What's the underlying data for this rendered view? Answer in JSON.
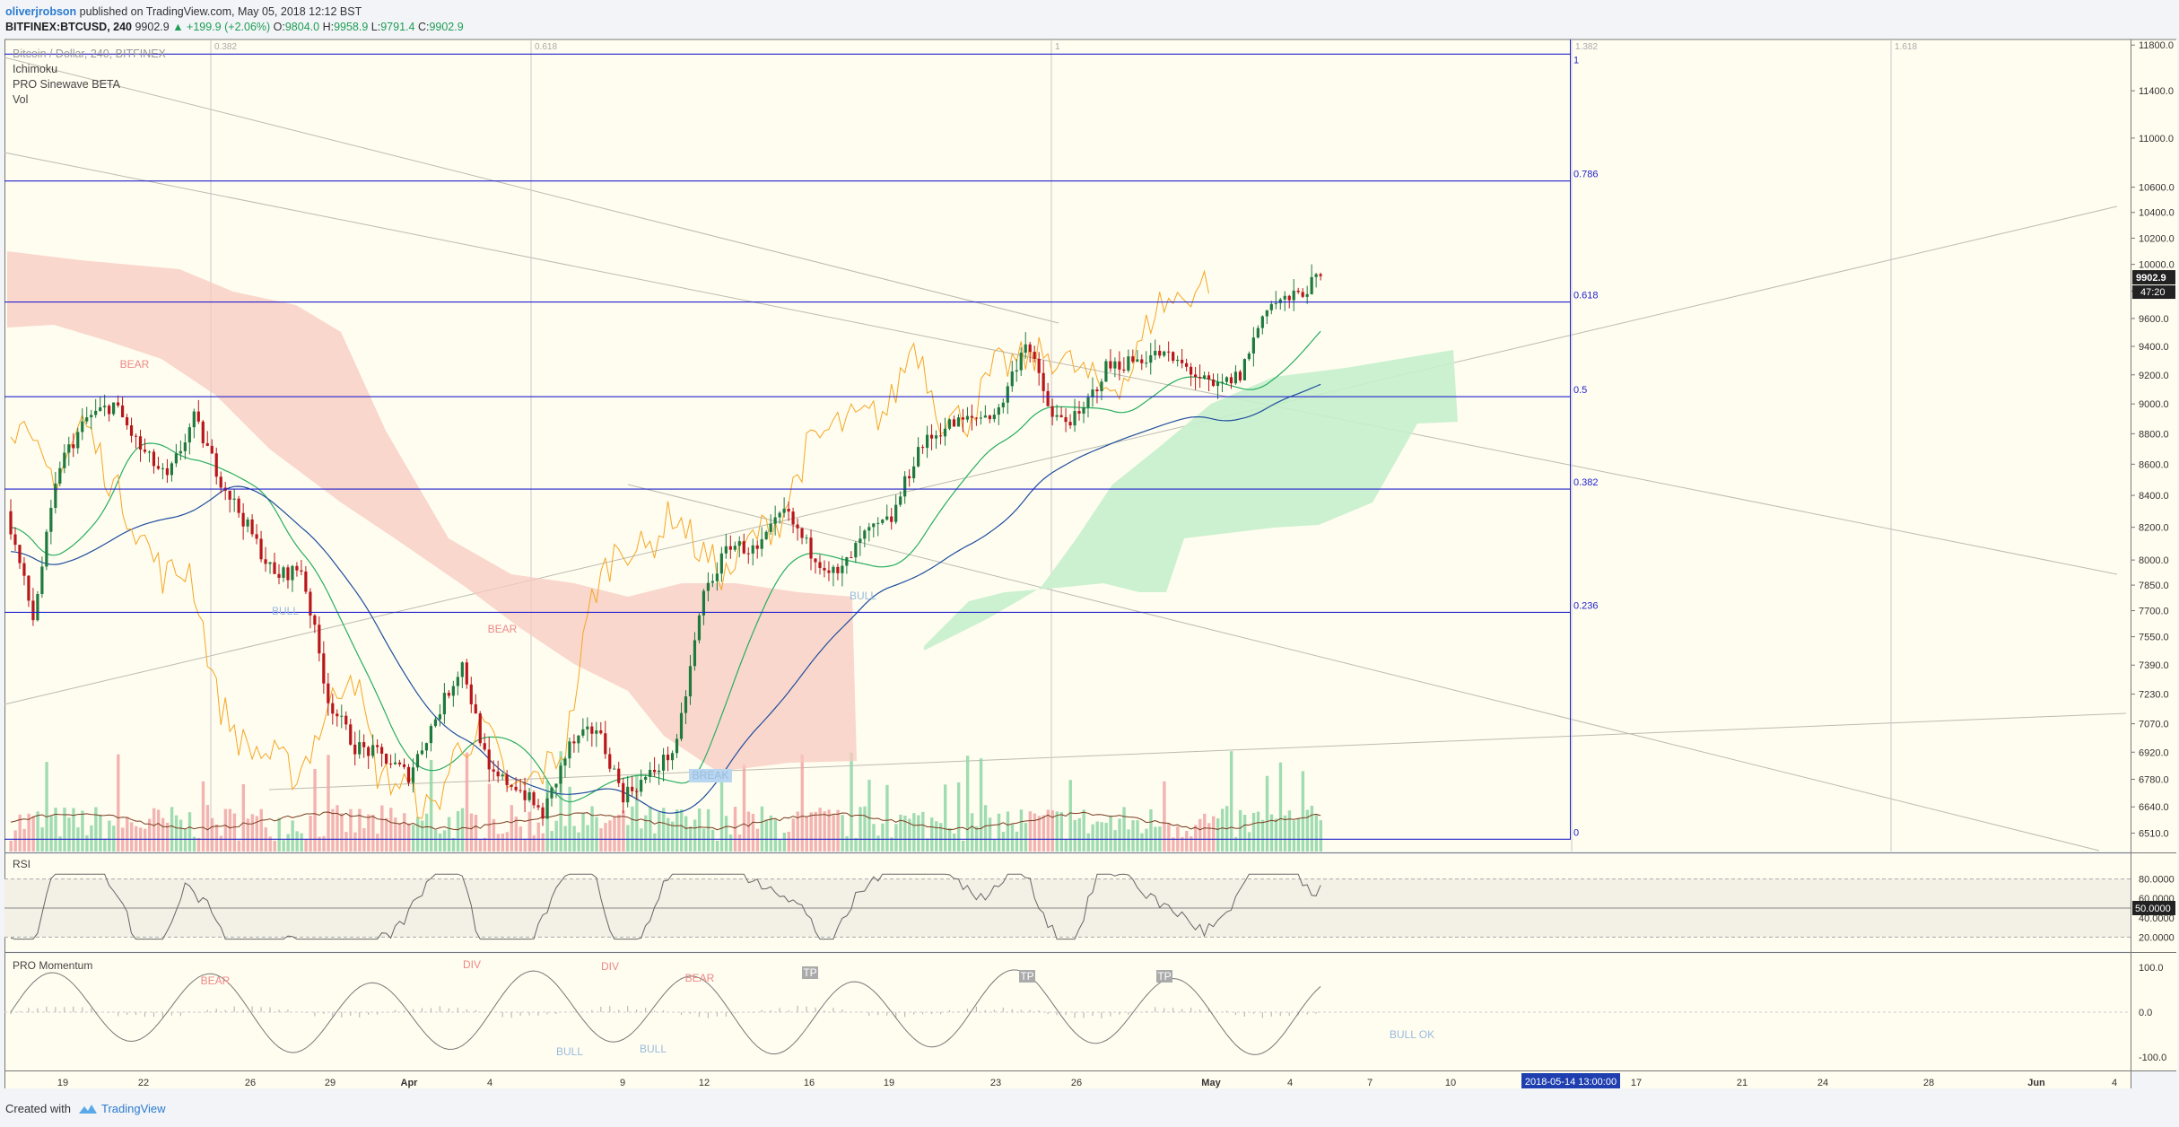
{
  "header": {
    "author": "oliverjrobson",
    "published_text": "published on TradingView.com, May 05, 2018 12:12 BST",
    "symbol": "BITFINEX:BTCUSD, 240",
    "last": "9902.9",
    "change": "▲ +199.9 (+2.06%)",
    "o_label": "O:",
    "o": "9804.0",
    "h_label": "H:",
    "h": "9958.9",
    "l_label": "L:",
    "l": "9791.4",
    "c_label": "C:",
    "c": "9902.9"
  },
  "legend": {
    "title": "Bitcoin / Dollar, 240, BITFINEX",
    "indicators": [
      "Ichimoku",
      "PRO Sinewave BETA",
      "Vol"
    ]
  },
  "colors": {
    "background": "#fffdf0",
    "fib_line": "#2222cc",
    "bull_candle": "#1e7a3e",
    "bear_candle": "#b8161b",
    "cloud_bear": "#f8c9c0",
    "cloud_bull": "#c7efcc",
    "orange_line": "#f5a623",
    "blue_line": "#1f4e9e",
    "green_line": "#27ae60",
    "rsi_line": "#666666"
  },
  "footer": {
    "created_with": "Created with",
    "brand": "TradingView"
  },
  "chart_data": {
    "type": "candlestick",
    "price_axis": {
      "ticks": [
        11800,
        11400,
        11000,
        10600,
        10400,
        10200,
        10000,
        9800,
        9600,
        9400,
        9200,
        9000,
        8800,
        8600,
        8400,
        8200,
        8000,
        7850,
        7700,
        7550,
        7390,
        7230,
        7070,
        6920,
        6780,
        6640,
        6510
      ],
      "last_price_label": "9902.9",
      "countdown_label": "47:20",
      "ylim": [
        6420,
        11850
      ]
    },
    "time_axis": {
      "ticks": [
        "19",
        "22",
        "26",
        "29",
        "Apr",
        "4",
        "9",
        "12",
        "16",
        "19",
        "23",
        "26",
        "May",
        "4",
        "7",
        "10",
        "17",
        "21",
        "24",
        "28",
        "Jun",
        "4"
      ],
      "highlight_label": "2018-05-14 13:00:00"
    },
    "fib_levels": [
      {
        "label": "1",
        "value": 11720
      },
      {
        "label": "0.786",
        "value": 10650
      },
      {
        "label": "0.618",
        "value": 9720
      },
      {
        "label": "0.5",
        "value": 9050
      },
      {
        "label": "0.382",
        "value": 8440
      },
      {
        "label": "0.236",
        "value": 7690
      },
      {
        "label": "0",
        "value": 6480
      }
    ],
    "fib_time_labels": [
      "0.382",
      "0.618",
      "1",
      "1.382",
      "1.618"
    ],
    "annotations": [
      "BEAR",
      "BEAR",
      "BULL",
      "BULL",
      "BREAK"
    ],
    "close_path": [
      [
        "Mar 17",
        8300
      ],
      [
        "Mar 18",
        7650
      ],
      [
        "Mar 19",
        8600
      ],
      [
        "Mar 20",
        8900
      ],
      [
        "Mar 21",
        9000
      ],
      [
        "Mar 22",
        8700
      ],
      [
        "Mar 23",
        8500
      ],
      [
        "Mar 24",
        8900
      ],
      [
        "Mar 25",
        8500
      ],
      [
        "Mar 26",
        8200
      ],
      [
        "Mar 27",
        7900
      ],
      [
        "Mar 28",
        7950
      ],
      [
        "Mar 29",
        7200
      ],
      [
        "Mar 30",
        6950
      ],
      [
        "Mar 31",
        6900
      ],
      [
        "Apr 1",
        6800
      ],
      [
        "Apr 2",
        7100
      ],
      [
        "Apr 3",
        7400
      ],
      [
        "Apr 4",
        6800
      ],
      [
        "Apr 5",
        6750
      ],
      [
        "Apr 6",
        6600
      ],
      [
        "Apr 7",
        6950
      ],
      [
        "Apr 8",
        7050
      ],
      [
        "Apr 9",
        6700
      ],
      [
        "Apr 10",
        6800
      ],
      [
        "Apr 11",
        6950
      ],
      [
        "Apr 12",
        7800
      ],
      [
        "Apr 13",
        8100
      ],
      [
        "Apr 14",
        8050
      ],
      [
        "Apr 15",
        8300
      ],
      [
        "Apr 16",
        8050
      ],
      [
        "Apr 17",
        7900
      ],
      [
        "Apr 18",
        8150
      ],
      [
        "Apr 19",
        8250
      ],
      [
        "Apr 20",
        8700
      ],
      [
        "Apr 21",
        8850
      ],
      [
        "Apr 22",
        8900
      ],
      [
        "Apr 23",
        8950
      ],
      [
        "Apr 24",
        9450
      ],
      [
        "Apr 25",
        8900
      ],
      [
        "Apr 26",
        8900
      ],
      [
        "Apr 27",
        9250
      ],
      [
        "Apr 28",
        9300
      ],
      [
        "Apr 29",
        9350
      ],
      [
        "Apr 30",
        9250
      ],
      [
        "May 1",
        9100
      ],
      [
        "May 2",
        9200
      ],
      [
        "May 3",
        9700
      ],
      [
        "May 4",
        9750
      ],
      [
        "May 5",
        9902.9
      ]
    ],
    "rsi": {
      "label": "RSI",
      "ticks": [
        80,
        60,
        50,
        40,
        20
      ],
      "current": "50.0000"
    },
    "momentum": {
      "label": "PRO Momentum",
      "ticks": [
        "100.0",
        "0.0",
        "-100.0"
      ],
      "annotations": [
        "DIV",
        "DIV",
        "BEAR",
        "BEAR",
        "BULL",
        "BULL",
        "TP",
        "TP",
        "TP",
        "BULL OK"
      ]
    }
  }
}
